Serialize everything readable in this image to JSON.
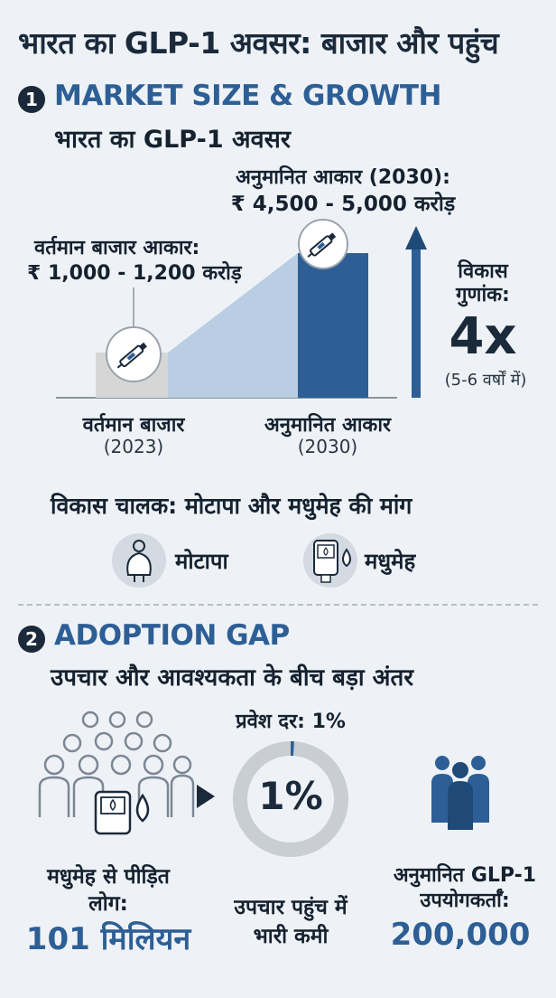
{
  "title": "भारत का GLP-1 अवसर: बाजार और पहुंच",
  "section1": {
    "number": "1",
    "title": "MARKET SIZE & GROWTH",
    "subtitle": "भारत का GLP-1 अवसर",
    "current": {
      "label": "वर्तमान बाजार आकार:",
      "value": "₹ 1,000 - 1,200 करोड़",
      "axis_label": "वर्तमान बाजार",
      "year": "(2023)"
    },
    "projected": {
      "label": "अनुमानित आकार (2030):",
      "value": "₹ 4,500 - 5,000 करोड़",
      "axis_label": "अनुमानित आकार",
      "year": "(2030)"
    },
    "growth": {
      "label_line1": "विकास",
      "label_line2": "गुणांक:",
      "value": "4x",
      "period": "(5-6 वर्षों में)"
    },
    "drivers": {
      "title": "विकास चालक: मोटापा और मधुमेह की मांग",
      "items": [
        {
          "label": "मोटापा",
          "icon": "obesity-person-icon"
        },
        {
          "label": "मधुमेह",
          "icon": "glucose-meter-icon"
        }
      ]
    }
  },
  "section2": {
    "number": "2",
    "title": "ADOPTION GAP",
    "subtitle": "उपचार और आवश्यकता के बीच बड़ा अंतर",
    "diabetics": {
      "label_line1": "मधुमेह से पीड़ित",
      "label_line2": "लोग:",
      "value": "101 मिलियन"
    },
    "penetration": {
      "label": "प्रवेश दर: 1%",
      "value": "1%",
      "percent": 1,
      "caption_line1": "उपचार पहुंच में",
      "caption_line2": "भारी कमी"
    },
    "users": {
      "label_line1": "अनुमानित GLP-1",
      "label_line2": "उपयोगकर्ताँ:",
      "value": "200,000"
    }
  },
  "colors": {
    "accent_blue": "#2d5f96",
    "dark_navy": "#1b2a3b",
    "light_blue": "#b9cde3",
    "bar_grey": "#d4d4d4",
    "ring_grey": "#c9ced4"
  }
}
